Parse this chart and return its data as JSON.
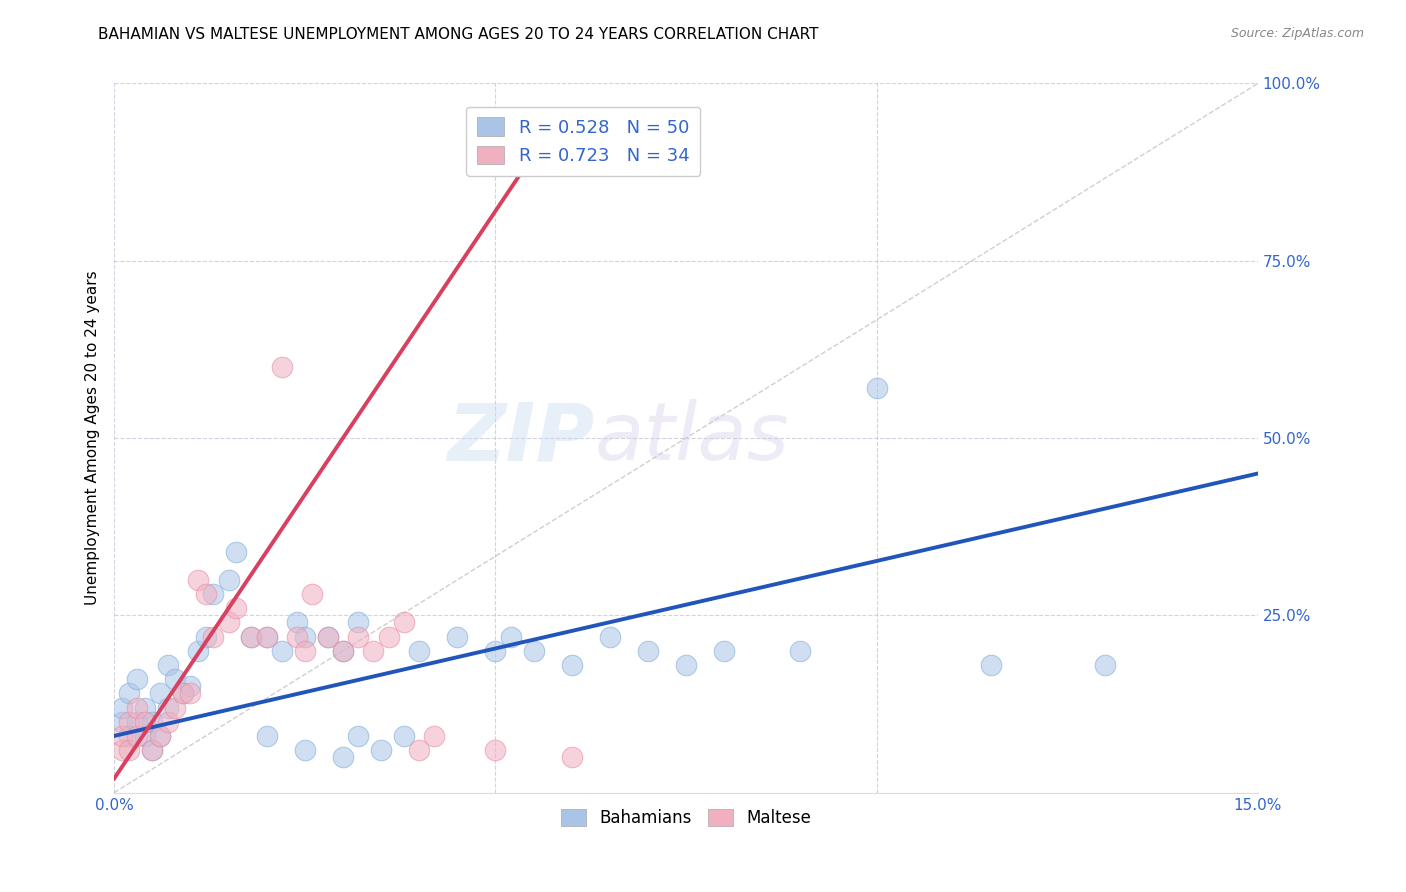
{
  "title": "BAHAMIAN VS MALTESE UNEMPLOYMENT AMONG AGES 20 TO 24 YEARS CORRELATION CHART",
  "source": "Source: ZipAtlas.com",
  "ylabel": "Unemployment Among Ages 20 to 24 years",
  "xlim": [
    0,
    0.15
  ],
  "ylim": [
    0,
    1.0
  ],
  "xticks": [
    0.0,
    0.05,
    0.1,
    0.15
  ],
  "xticklabels": [
    "0.0%",
    "",
    "",
    "15.0%"
  ],
  "yticks": [
    0.0,
    0.25,
    0.5,
    0.75,
    1.0
  ],
  "yticklabels_right": [
    "",
    "25.0%",
    "50.0%",
    "75.0%",
    "100.0%"
  ],
  "bg_color": "#ffffff",
  "grid_color": "#b0b8cc",
  "watermark_zip": "ZIP",
  "watermark_atlas": "atlas",
  "blue_color": "#aac4e8",
  "pink_color": "#f0b0c0",
  "blue_edge_color": "#7aacd6",
  "pink_edge_color": "#e888a0",
  "blue_line_color": "#2255bb",
  "pink_line_color": "#d94060",
  "blue_R": 0.528,
  "blue_N": 50,
  "pink_R": 0.723,
  "pink_N": 34,
  "blue_line_x": [
    0.0,
    0.15
  ],
  "blue_line_y": [
    0.08,
    0.45
  ],
  "pink_line_x": [
    0.0,
    0.055
  ],
  "pink_line_y": [
    0.02,
    0.9
  ],
  "ref_line_x": [
    0.0,
    0.15
  ],
  "ref_line_y": [
    0.0,
    1.0
  ],
  "blue_scatter_x": [
    0.001,
    0.001,
    0.002,
    0.002,
    0.003,
    0.003,
    0.004,
    0.004,
    0.005,
    0.005,
    0.006,
    0.006,
    0.007,
    0.007,
    0.008,
    0.009,
    0.01,
    0.011,
    0.012,
    0.013,
    0.015,
    0.016,
    0.018,
    0.02,
    0.022,
    0.024,
    0.025,
    0.028,
    0.03,
    0.032,
    0.02,
    0.025,
    0.03,
    0.032,
    0.035,
    0.038,
    0.04,
    0.045,
    0.05,
    0.052,
    0.055,
    0.06,
    0.065,
    0.07,
    0.075,
    0.08,
    0.09,
    0.1,
    0.115,
    0.13
  ],
  "blue_scatter_y": [
    0.1,
    0.12,
    0.08,
    0.14,
    0.1,
    0.16,
    0.12,
    0.08,
    0.1,
    0.06,
    0.08,
    0.14,
    0.12,
    0.18,
    0.16,
    0.14,
    0.15,
    0.2,
    0.22,
    0.28,
    0.3,
    0.34,
    0.22,
    0.22,
    0.2,
    0.24,
    0.22,
    0.22,
    0.2,
    0.24,
    0.08,
    0.06,
    0.05,
    0.08,
    0.06,
    0.08,
    0.2,
    0.22,
    0.2,
    0.22,
    0.2,
    0.18,
    0.22,
    0.2,
    0.18,
    0.2,
    0.2,
    0.57,
    0.18,
    0.18
  ],
  "pink_scatter_x": [
    0.001,
    0.001,
    0.002,
    0.002,
    0.003,
    0.003,
    0.004,
    0.005,
    0.006,
    0.007,
    0.008,
    0.009,
    0.01,
    0.011,
    0.012,
    0.013,
    0.015,
    0.016,
    0.018,
    0.02,
    0.022,
    0.024,
    0.025,
    0.026,
    0.028,
    0.03,
    0.032,
    0.034,
    0.036,
    0.038,
    0.04,
    0.042,
    0.05,
    0.06
  ],
  "pink_scatter_y": [
    0.06,
    0.08,
    0.06,
    0.1,
    0.08,
    0.12,
    0.1,
    0.06,
    0.08,
    0.1,
    0.12,
    0.14,
    0.14,
    0.3,
    0.28,
    0.22,
    0.24,
    0.26,
    0.22,
    0.22,
    0.6,
    0.22,
    0.2,
    0.28,
    0.22,
    0.2,
    0.22,
    0.2,
    0.22,
    0.24,
    0.06,
    0.08,
    0.06,
    0.05
  ]
}
